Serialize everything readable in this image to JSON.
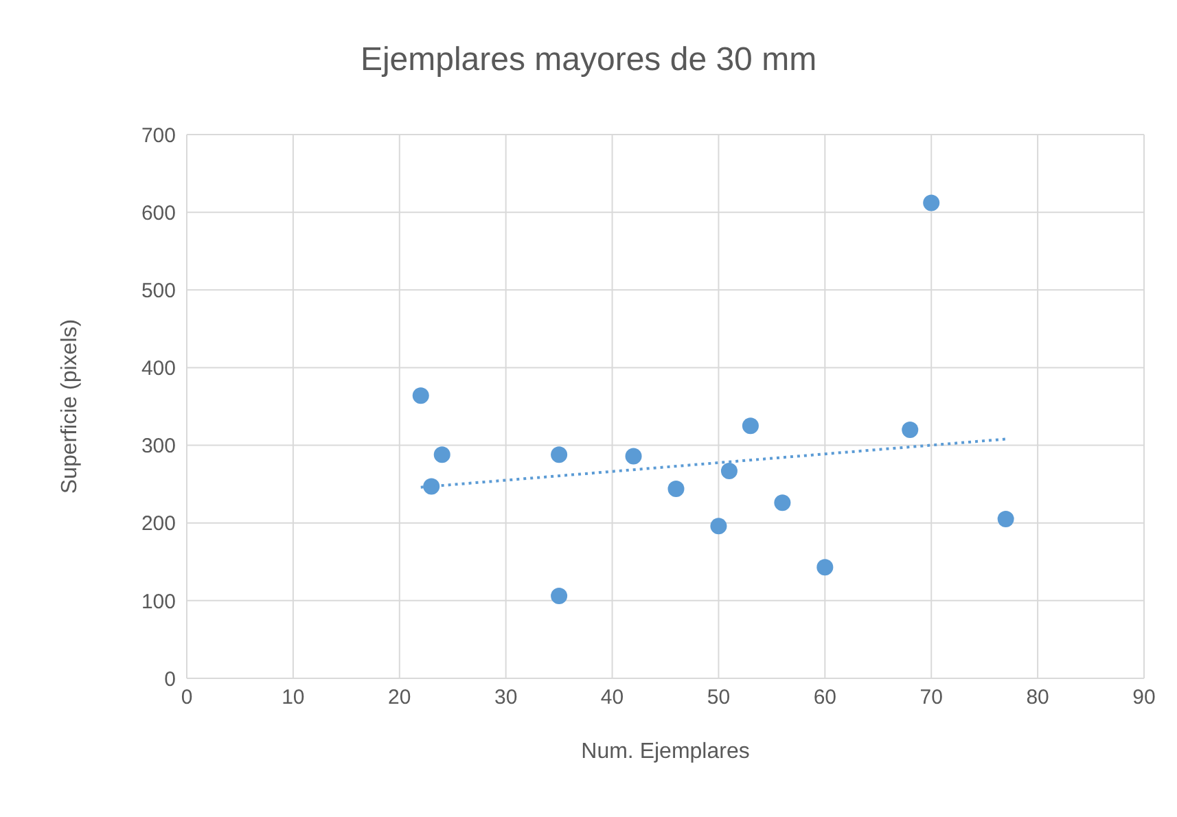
{
  "chart_data": {
    "type": "scatter",
    "title": "Ejemplares mayores de 30 mm",
    "xlabel": "Num. Ejemplares",
    "ylabel": "Superficie (pixels)",
    "xlim": [
      0,
      90
    ],
    "xticks": [
      0,
      10,
      20,
      30,
      40,
      50,
      60,
      70,
      80,
      90
    ],
    "ylim": [
      0,
      700
    ],
    "yticks": [
      0,
      100,
      200,
      300,
      400,
      500,
      600,
      700
    ],
    "grid": true,
    "legend": false,
    "series": [
      {
        "color": "#5b9bd5",
        "marker": "circle",
        "x": [
          22,
          23,
          24,
          35,
          35,
          42,
          46,
          50,
          51,
          53,
          56,
          60,
          68,
          70,
          77
        ],
        "values": [
          364,
          247,
          288,
          288,
          106,
          286,
          244,
          196,
          267,
          325,
          226,
          143,
          320,
          612,
          205
        ]
      },
      {
        "type": "line",
        "color": "#5b9bd5",
        "line_style": "dotted",
        "marker": "none",
        "x": [
          22,
          77
        ],
        "values": [
          246,
          308
        ]
      }
    ]
  }
}
